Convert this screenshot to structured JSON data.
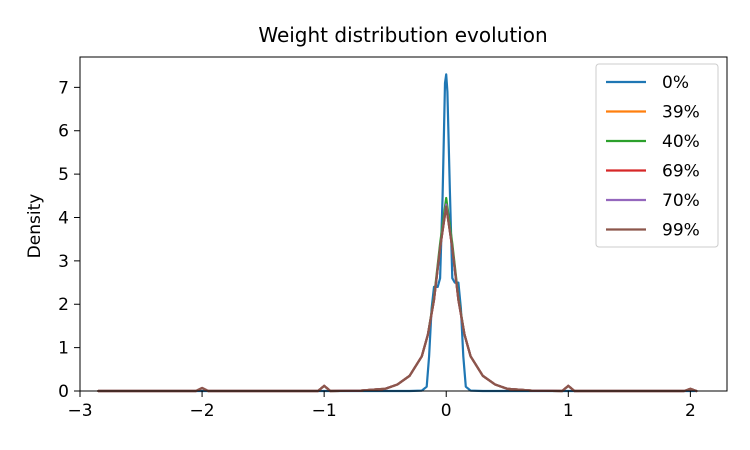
{
  "chart_data": {
    "type": "line",
    "title": "Weight distribution evolution",
    "xlabel": "",
    "ylabel": "Density",
    "xlim": [
      -3.0,
      2.3
    ],
    "ylim": [
      0,
      7.7
    ],
    "xticks": [
      -3,
      -2,
      -1,
      0,
      1,
      2
    ],
    "yticks": [
      0,
      1,
      2,
      3,
      4,
      5,
      6,
      7
    ],
    "grid": false,
    "legend_position": "top-right",
    "series": [
      {
        "name": "0%",
        "color": "#1f77b4",
        "points": [
          [
            -2.85,
            0
          ],
          [
            -0.3,
            0
          ],
          [
            -0.2,
            0.01
          ],
          [
            -0.16,
            0.1
          ],
          [
            -0.14,
            0.8
          ],
          [
            -0.12,
            1.9
          ],
          [
            -0.1,
            2.4
          ],
          [
            -0.07,
            2.4
          ],
          [
            -0.05,
            2.6
          ],
          [
            -0.03,
            4.5
          ],
          [
            -0.01,
            7.1
          ],
          [
            0.0,
            7.3
          ],
          [
            0.01,
            6.9
          ],
          [
            0.03,
            4.6
          ],
          [
            0.05,
            2.6
          ],
          [
            0.07,
            2.5
          ],
          [
            0.1,
            2.5
          ],
          [
            0.12,
            1.9
          ],
          [
            0.14,
            0.8
          ],
          [
            0.16,
            0.1
          ],
          [
            0.2,
            0.01
          ],
          [
            0.3,
            0
          ],
          [
            2.05,
            0
          ]
        ]
      },
      {
        "name": "39%",
        "color": "#ff7f0e",
        "points": [
          [
            -2.85,
            0
          ],
          [
            -2.05,
            0
          ],
          [
            -2.0,
            0.07
          ],
          [
            -1.95,
            0
          ],
          [
            -1.05,
            0
          ],
          [
            -1.0,
            0.12
          ],
          [
            -0.95,
            0
          ],
          [
            -0.7,
            0.01
          ],
          [
            -0.5,
            0.05
          ],
          [
            -0.4,
            0.15
          ],
          [
            -0.3,
            0.35
          ],
          [
            -0.2,
            0.8
          ],
          [
            -0.15,
            1.3
          ],
          [
            -0.1,
            2.1
          ],
          [
            -0.05,
            3.3
          ],
          [
            0.0,
            4.3
          ],
          [
            0.05,
            3.3
          ],
          [
            0.1,
            2.1
          ],
          [
            0.15,
            1.3
          ],
          [
            0.2,
            0.8
          ],
          [
            0.3,
            0.35
          ],
          [
            0.4,
            0.15
          ],
          [
            0.5,
            0.05
          ],
          [
            0.7,
            0.01
          ],
          [
            0.95,
            0
          ],
          [
            1.0,
            0.12
          ],
          [
            1.05,
            0
          ],
          [
            1.95,
            0
          ],
          [
            2.0,
            0.05
          ],
          [
            2.05,
            0
          ]
        ]
      },
      {
        "name": "40%",
        "color": "#2ca02c",
        "points": [
          [
            -2.85,
            0
          ],
          [
            -2.05,
            0
          ],
          [
            -2.0,
            0.07
          ],
          [
            -1.95,
            0
          ],
          [
            -1.05,
            0
          ],
          [
            -1.0,
            0.12
          ],
          [
            -0.95,
            0
          ],
          [
            -0.7,
            0.01
          ],
          [
            -0.5,
            0.05
          ],
          [
            -0.4,
            0.15
          ],
          [
            -0.3,
            0.35
          ],
          [
            -0.2,
            0.8
          ],
          [
            -0.15,
            1.3
          ],
          [
            -0.1,
            2.15
          ],
          [
            -0.05,
            3.4
          ],
          [
            0.0,
            4.45
          ],
          [
            0.05,
            3.4
          ],
          [
            0.1,
            2.15
          ],
          [
            0.15,
            1.3
          ],
          [
            0.2,
            0.8
          ],
          [
            0.3,
            0.35
          ],
          [
            0.4,
            0.15
          ],
          [
            0.5,
            0.05
          ],
          [
            0.7,
            0.01
          ],
          [
            0.95,
            0
          ],
          [
            1.0,
            0.12
          ],
          [
            1.05,
            0
          ],
          [
            1.95,
            0
          ],
          [
            2.0,
            0.05
          ],
          [
            2.05,
            0
          ]
        ]
      },
      {
        "name": "69%",
        "color": "#d62728",
        "points": [
          [
            -2.85,
            0
          ],
          [
            -2.05,
            0
          ],
          [
            -2.0,
            0.07
          ],
          [
            -1.95,
            0
          ],
          [
            -1.05,
            0
          ],
          [
            -1.0,
            0.12
          ],
          [
            -0.95,
            0
          ],
          [
            -0.7,
            0.01
          ],
          [
            -0.5,
            0.05
          ],
          [
            -0.4,
            0.15
          ],
          [
            -0.3,
            0.35
          ],
          [
            -0.2,
            0.8
          ],
          [
            -0.15,
            1.3
          ],
          [
            -0.1,
            2.1
          ],
          [
            -0.05,
            3.3
          ],
          [
            0.0,
            4.25
          ],
          [
            0.05,
            3.3
          ],
          [
            0.1,
            2.1
          ],
          [
            0.15,
            1.3
          ],
          [
            0.2,
            0.8
          ],
          [
            0.3,
            0.35
          ],
          [
            0.4,
            0.15
          ],
          [
            0.5,
            0.05
          ],
          [
            0.7,
            0.01
          ],
          [
            0.95,
            0
          ],
          [
            1.0,
            0.12
          ],
          [
            1.05,
            0
          ],
          [
            1.95,
            0
          ],
          [
            2.0,
            0.05
          ],
          [
            2.05,
            0
          ]
        ]
      },
      {
        "name": "70%",
        "color": "#9467bd",
        "points": [
          [
            -2.85,
            0
          ],
          [
            -2.05,
            0
          ],
          [
            -2.0,
            0.07
          ],
          [
            -1.95,
            0
          ],
          [
            -1.05,
            0
          ],
          [
            -1.0,
            0.12
          ],
          [
            -0.95,
            0
          ],
          [
            -0.7,
            0.01
          ],
          [
            -0.5,
            0.05
          ],
          [
            -0.4,
            0.15
          ],
          [
            -0.3,
            0.35
          ],
          [
            -0.2,
            0.8
          ],
          [
            -0.15,
            1.3
          ],
          [
            -0.1,
            2.1
          ],
          [
            -0.05,
            3.3
          ],
          [
            0.0,
            4.3
          ],
          [
            0.05,
            3.3
          ],
          [
            0.1,
            2.1
          ],
          [
            0.15,
            1.3
          ],
          [
            0.2,
            0.8
          ],
          [
            0.3,
            0.35
          ],
          [
            0.4,
            0.15
          ],
          [
            0.5,
            0.05
          ],
          [
            0.7,
            0.01
          ],
          [
            0.95,
            0
          ],
          [
            1.0,
            0.12
          ],
          [
            1.05,
            0
          ],
          [
            1.95,
            0
          ],
          [
            2.0,
            0.05
          ],
          [
            2.05,
            0
          ]
        ]
      },
      {
        "name": "99%",
        "color": "#8c564b",
        "points": [
          [
            -2.85,
            0
          ],
          [
            -2.05,
            0
          ],
          [
            -2.0,
            0.07
          ],
          [
            -1.95,
            0
          ],
          [
            -1.05,
            0
          ],
          [
            -1.0,
            0.12
          ],
          [
            -0.95,
            0
          ],
          [
            -0.7,
            0.01
          ],
          [
            -0.5,
            0.05
          ],
          [
            -0.4,
            0.15
          ],
          [
            -0.3,
            0.35
          ],
          [
            -0.2,
            0.8
          ],
          [
            -0.15,
            1.3
          ],
          [
            -0.1,
            2.1
          ],
          [
            -0.05,
            3.3
          ],
          [
            0.0,
            4.25
          ],
          [
            0.05,
            3.3
          ],
          [
            0.1,
            2.1
          ],
          [
            0.15,
            1.3
          ],
          [
            0.2,
            0.8
          ],
          [
            0.3,
            0.35
          ],
          [
            0.4,
            0.15
          ],
          [
            0.5,
            0.05
          ],
          [
            0.7,
            0.01
          ],
          [
            0.95,
            0
          ],
          [
            1.0,
            0.12
          ],
          [
            1.05,
            0
          ],
          [
            1.95,
            0
          ],
          [
            2.0,
            0.05
          ],
          [
            2.05,
            0
          ]
        ]
      }
    ]
  }
}
